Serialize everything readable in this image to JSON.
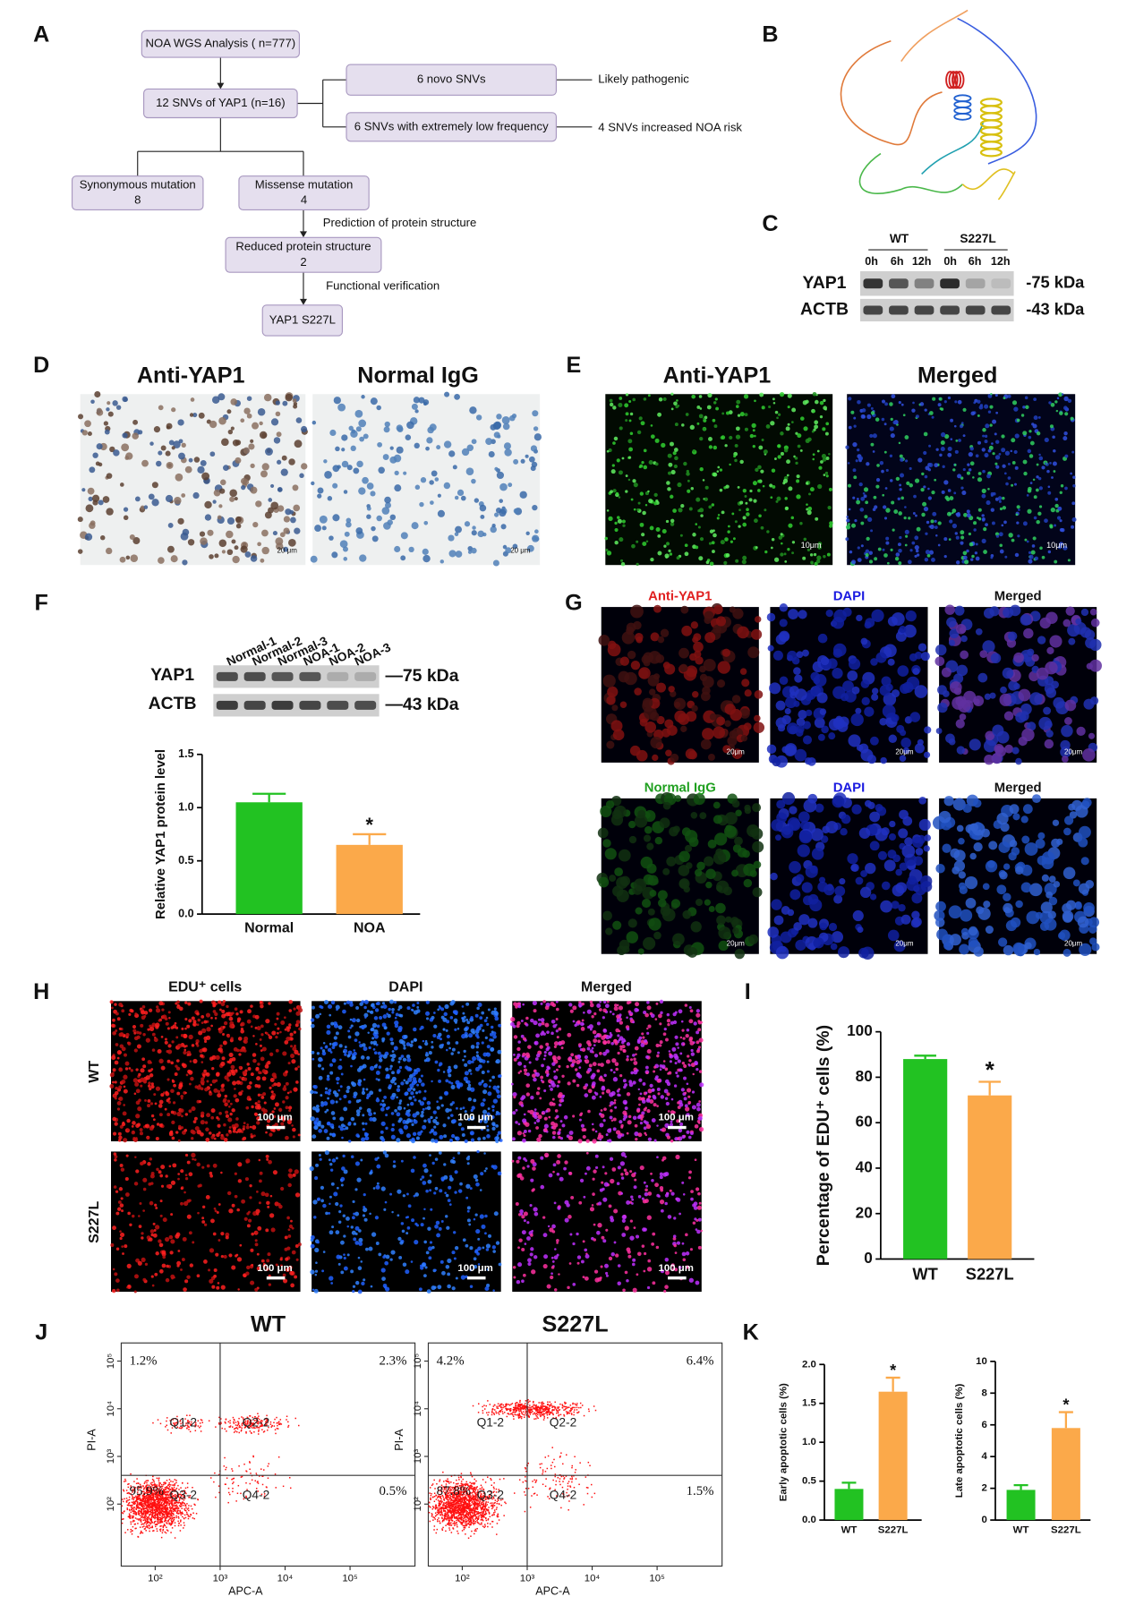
{
  "panels": [
    "A",
    "B",
    "C",
    "D",
    "E",
    "F",
    "G",
    "H",
    "I",
    "J",
    "K"
  ],
  "flowchart": {
    "nodes": [
      {
        "lines": [
          "NOA WGS Analysis ( n=777)"
        ]
      },
      {
        "lines": [
          "12 SNVs of YAP1 (n=16)"
        ]
      },
      {
        "lines": [
          "6 novo SNVs"
        ]
      },
      {
        "lines": [
          "6 SNVs with extremely low frequency"
        ]
      },
      {
        "lines": [
          "Synonymous mutation",
          "8"
        ]
      },
      {
        "lines": [
          "Missense mutation",
          "4"
        ]
      },
      {
        "lines": [
          "Reduced protein structure",
          "2"
        ]
      },
      {
        "lines": [
          "YAP1 S227L"
        ]
      }
    ],
    "side_labels": [
      "Likely pathogenic",
      "4  SNVs increased NOA risk",
      "Prediction of protein structure",
      "Functional verification"
    ]
  },
  "blot_c": {
    "groups": [
      "WT",
      "S227L"
    ],
    "lanes": [
      "0h",
      "6h",
      "12h",
      "0h",
      "6h",
      "12h"
    ],
    "rows": [
      "YAP1",
      "ACTB"
    ],
    "sizes": [
      "-75 kDa",
      "-43 kDa"
    ]
  },
  "panel_d": {
    "titles": [
      "Anti-YAP1",
      "Normal IgG"
    ],
    "scale": [
      "20 μm",
      "20 μm"
    ]
  },
  "panel_e": {
    "titles": [
      "Anti-YAP1",
      "Merged"
    ],
    "scale": [
      "10μm",
      "10μm"
    ]
  },
  "blot_f": {
    "lanes": [
      "Normal-1",
      "Normal-2",
      "Normal-3",
      "NOA-1",
      "NOA-2",
      "NOA-3"
    ],
    "rows": [
      "YAP1",
      "ACTB"
    ],
    "sizes": [
      "—75 kDa",
      "—43 kDa"
    ]
  },
  "panel_g": {
    "rows": [
      [
        "Anti-YAP1",
        "DAPI",
        "Merged"
      ],
      [
        "Normal IgG",
        "DAPI",
        "Merged"
      ]
    ],
    "scale": "20μm"
  },
  "panel_h": {
    "columns": [
      "EDU⁺ cells",
      "DAPI",
      "Merged"
    ],
    "rows": [
      "WT",
      "S227L"
    ],
    "scale": "100 μm"
  },
  "flow_cytometry": {
    "x_label": "APC-A",
    "y_label": "PI-A",
    "gates": [
      "Q1-2",
      "Q2-2",
      "Q3-2",
      "Q4-2"
    ],
    "xlim": [
      30,
      1000000
    ],
    "ylim": [
      5,
      240000
    ],
    "log": true,
    "xticks": [
      {
        "value": 100,
        "label": "10²"
      },
      {
        "value": 1000,
        "label": "10³"
      },
      {
        "value": 10000,
        "label": "10⁴"
      },
      {
        "value": 100000,
        "label": "10⁵"
      }
    ],
    "yticks": [
      {
        "value": 100,
        "label": "10²"
      },
      {
        "value": 1000,
        "label": "10³"
      },
      {
        "value": 10000,
        "label": "10⁴"
      },
      {
        "value": 100000,
        "label": "10⁵"
      }
    ],
    "plots": [
      {
        "title": "WT",
        "values": [
          1.2,
          2.3,
          95.9,
          0.5
        ],
        "value_labels": [
          "1.2%",
          "2.3%",
          "95.9%",
          "0.5%"
        ]
      },
      {
        "title": "S227L",
        "values": [
          4.2,
          6.4,
          87.8,
          1.5
        ],
        "value_labels": [
          "4.2%",
          "6.4%",
          "87.8%",
          "1.5%"
        ]
      }
    ]
  },
  "chart_data": [
    {
      "type": "bar",
      "y_label": "Relative YAP1 protein level",
      "categories": [
        "Normal",
        "NOA"
      ],
      "values": [
        1.05,
        0.65
      ],
      "errors": [
        0.08,
        0.1
      ],
      "colors": [
        "#22c222",
        "#fba94a"
      ],
      "ylim": [
        0,
        1.5
      ],
      "yticks": [
        {
          "value": 0,
          "label": "0.0"
        },
        {
          "value": 0.5,
          "label": "0.5"
        },
        {
          "value": 1,
          "label": "1.0"
        },
        {
          "value": 1.5,
          "label": "1.5"
        }
      ],
      "significance": {
        "index": 1,
        "label": "*"
      }
    },
    {
      "type": "bar",
      "y_label": "Percentage of EDU⁺ cells (%)",
      "categories": [
        "WT",
        "S227L"
      ],
      "values": [
        88,
        72
      ],
      "errors": [
        1.5,
        6
      ],
      "colors": [
        "#22c222",
        "#fba94a"
      ],
      "ylim": [
        0,
        100
      ],
      "yticks": [
        0,
        20,
        40,
        60,
        80,
        100
      ],
      "significance": {
        "index": 1,
        "label": "*"
      }
    },
    {
      "type": "bar",
      "y_label": "Early apoptotic cells (%)",
      "categories": [
        "WT",
        "S227L"
      ],
      "values": [
        0.4,
        1.65
      ],
      "errors": [
        0.08,
        0.18
      ],
      "colors": [
        "#22c222",
        "#fba94a"
      ],
      "ylim": [
        0,
        2
      ],
      "yticks": [
        {
          "value": 0,
          "label": "0.0"
        },
        {
          "value": 0.5,
          "label": "0.5"
        },
        {
          "value": 1,
          "label": "1.0"
        },
        {
          "value": 1.5,
          "label": "1.5"
        },
        {
          "value": 2,
          "label": "2.0"
        }
      ],
      "significance": {
        "index": 1,
        "label": "*"
      }
    },
    {
      "type": "bar",
      "y_label": "Late apoptotic cells (%)",
      "categories": [
        "WT",
        "S227L"
      ],
      "values": [
        1.9,
        5.8
      ],
      "errors": [
        0.3,
        1.0
      ],
      "colors": [
        "#22c222",
        "#fba94a"
      ],
      "ylim": [
        0,
        10
      ],
      "yticks": [
        0,
        2,
        4,
        6,
        8,
        10
      ],
      "significance": {
        "index": 1,
        "label": "*"
      }
    }
  ]
}
